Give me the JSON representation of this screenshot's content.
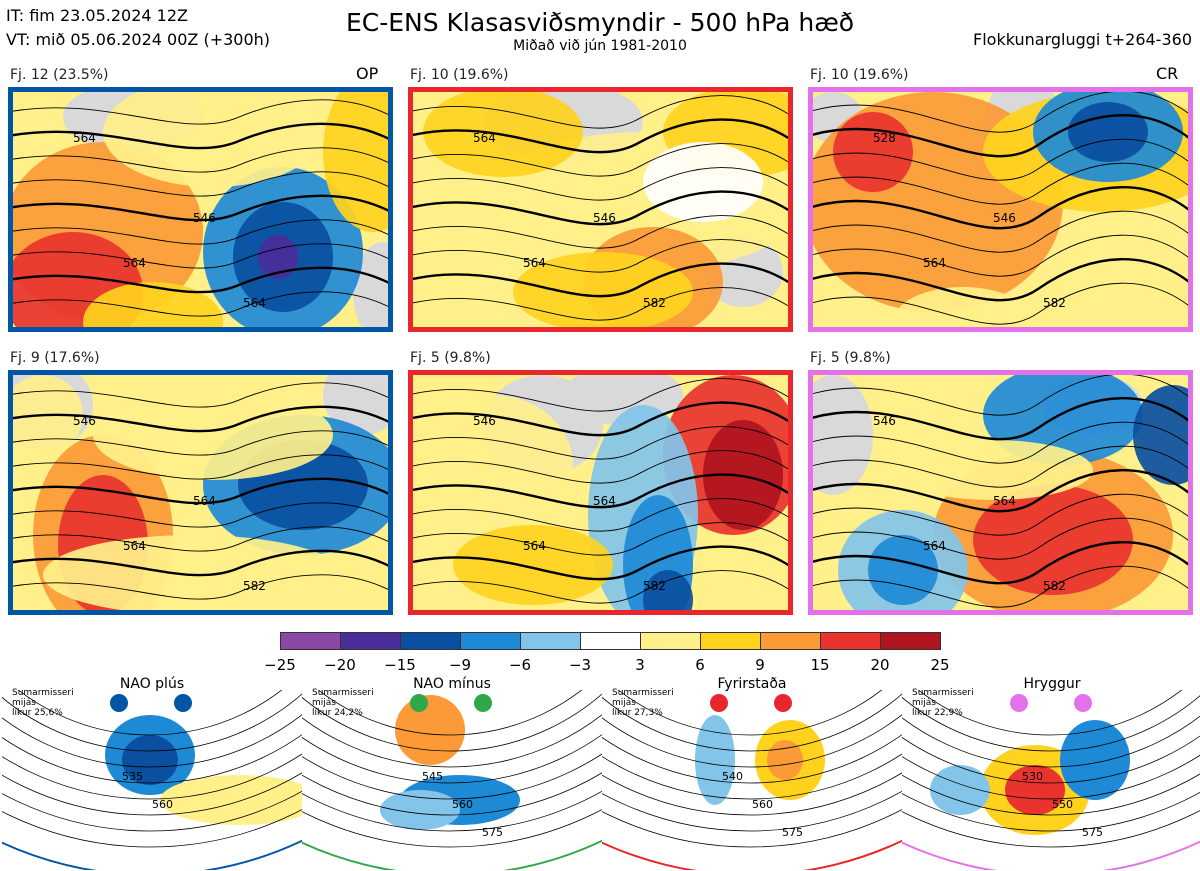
{
  "header": {
    "it_line": "IT: fim 23.05.2024 12Z",
    "vt_line": "VT: mið 05.06.2024 00Z  (+300h)",
    "title": "EC-ENS Klasasviðsmyndir - 500 hPa hæð",
    "subtitle": "Miðað við jún 1981-2010",
    "window": "Flokkunargluggi t+264-360"
  },
  "panels": [
    {
      "label": "Fj. 12 (23.5%)",
      "tag": "OP",
      "border": "#0055a5",
      "contours": [
        "564",
        "546",
        "564",
        "564"
      ]
    },
    {
      "label": "Fj. 10 (19.6%)",
      "tag": "",
      "border": "#e8262b",
      "contours": [
        "564",
        "546",
        "564",
        "582"
      ]
    },
    {
      "label": "Fj. 10 (19.6%)",
      "tag": "CR",
      "border": "#e371ea",
      "contours": [
        "528",
        "546",
        "564",
        "582"
      ]
    },
    {
      "label": "Fj. 9 (17.6%)",
      "tag": "",
      "border": "#0055a5",
      "contours": [
        "546",
        "564",
        "564",
        "582"
      ]
    },
    {
      "label": "Fj. 5 (9.8%)",
      "tag": "",
      "border": "#e8262b",
      "contours": [
        "546",
        "564",
        "564",
        "582"
      ]
    },
    {
      "label": "Fj. 5 (9.8%)",
      "tag": "",
      "border": "#e371ea",
      "contours": [
        "546",
        "564",
        "564",
        "582"
      ]
    }
  ],
  "colorbar": {
    "ticks": [
      "−25",
      "−20",
      "−15",
      "−9",
      "−6",
      "−3",
      "3",
      "6",
      "9",
      "15",
      "20",
      "25"
    ],
    "colors": [
      "#8a4aa3",
      "#4b2e9a",
      "#0a4fa0",
      "#1e8ad6",
      "#83c4ea",
      "#ffffff",
      "#fff08a",
      "#ffd21e",
      "#fb9a36",
      "#e8332e",
      "#b0141e"
    ]
  },
  "regimes": [
    {
      "title": "NAO plús",
      "line1": "Sumarmisseri",
      "line2": "mijás",
      "line3": "líkur 25,6%",
      "color": "#0055a5",
      "contours": [
        "535",
        "560"
      ]
    },
    {
      "title": "NAO mínus",
      "line1": "Sumarmisseri",
      "line2": "mijás",
      "line3": "líkur 24,2%",
      "color": "#2ea84a",
      "contours": [
        "545",
        "560",
        "575"
      ]
    },
    {
      "title": "Fyrirstaða",
      "line1": "Sumarmisseri",
      "line2": "mijás",
      "line3": "líkur 27,3%",
      "color": "#e8262b",
      "contours": [
        "540",
        "560",
        "575"
      ]
    },
    {
      "title": "Hryggur",
      "line1": "Sumarmisseri",
      "line2": "mijás",
      "line3": "líkur 22,9%",
      "color": "#e371ea",
      "contours": [
        "530",
        "550",
        "575"
      ]
    }
  ]
}
